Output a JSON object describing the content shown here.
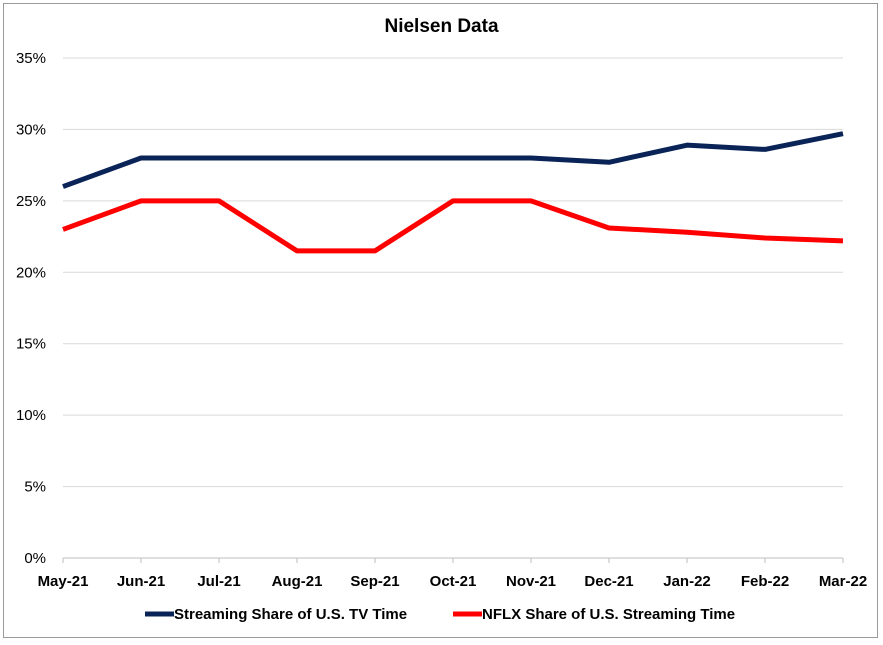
{
  "chart_data": {
    "type": "line",
    "title": "Nielsen Data",
    "categories": [
      "May-21",
      "Jun-21",
      "Jul-21",
      "Aug-21",
      "Sep-21",
      "Oct-21",
      "Nov-21",
      "Dec-21",
      "Jan-22",
      "Feb-22",
      "Mar-22"
    ],
    "y_ticks": [
      "0%",
      "5%",
      "10%",
      "15%",
      "20%",
      "25%",
      "30%",
      "35%"
    ],
    "ylim": [
      0,
      35
    ],
    "grid": "horizontal",
    "legend_position": "bottom",
    "series": [
      {
        "name": "Streaming Share of U.S. TV Time",
        "color": "#0a2458",
        "values": [
          26.0,
          28.0,
          28.0,
          28.0,
          28.0,
          28.0,
          28.0,
          27.7,
          28.9,
          28.6,
          29.7
        ]
      },
      {
        "name": "NFLX Share of U.S. Streaming Time",
        "color": "#ff0000",
        "values": [
          23.0,
          25.0,
          25.0,
          21.5,
          21.5,
          25.0,
          25.0,
          23.1,
          22.8,
          22.4,
          22.2
        ]
      }
    ]
  }
}
